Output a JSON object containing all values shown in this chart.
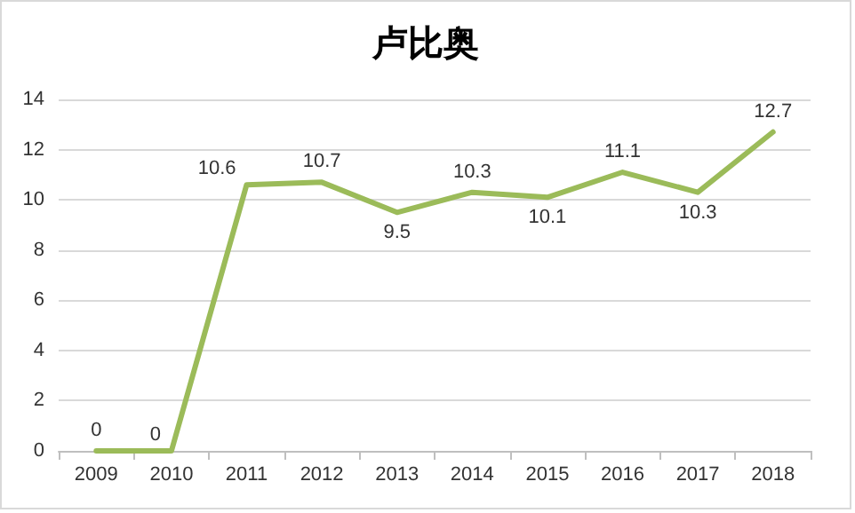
{
  "chart_data": {
    "type": "line",
    "title": "卢比奥",
    "categories": [
      "2009",
      "2010",
      "2011",
      "2012",
      "2013",
      "2014",
      "2015",
      "2016",
      "2017",
      "2018"
    ],
    "series": [
      {
        "color": "#9bbb59",
        "values": [
          0,
          0,
          10.6,
          10.7,
          9.5,
          10.3,
          10.1,
          11.1,
          10.3,
          12.7
        ]
      }
    ],
    "ylim": [
      0,
      14
    ],
    "yticks": [
      0,
      2,
      4,
      6,
      8,
      10,
      12,
      14
    ],
    "grid": "y",
    "data_labels": true,
    "marker": "none",
    "line_style": "solid"
  }
}
